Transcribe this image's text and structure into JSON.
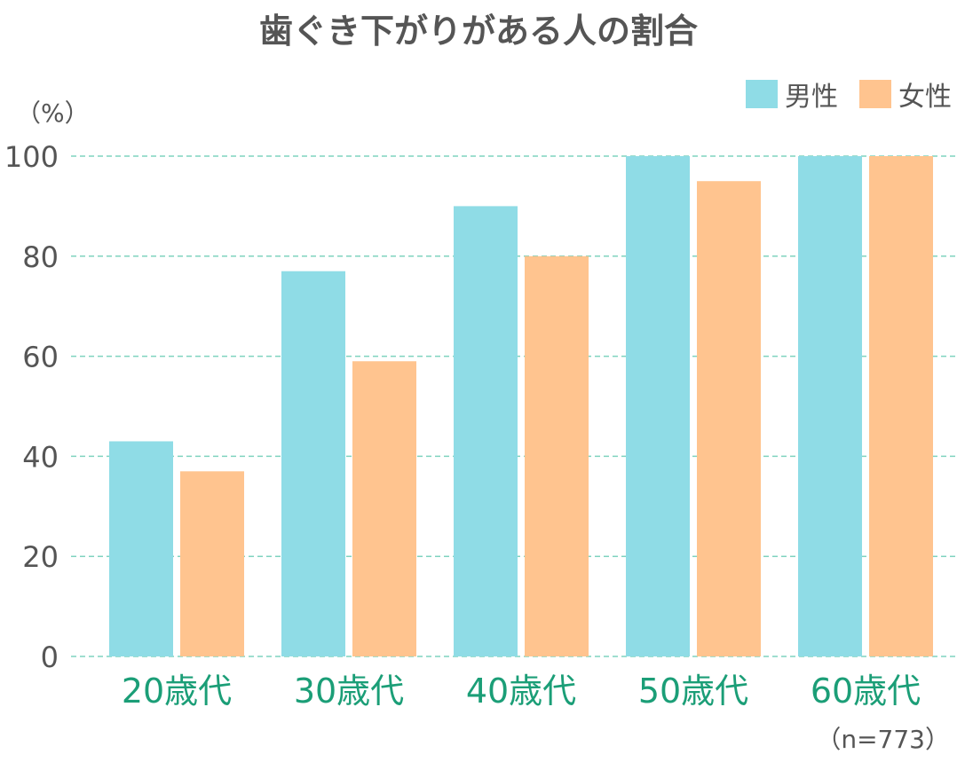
{
  "chart_data": {
    "type": "bar",
    "title": "歯ぐき下がりがある人の割合",
    "unit_label": "（%）",
    "note": "（n=773）",
    "categories": [
      "20歳代",
      "30歳代",
      "40歳代",
      "50歳代",
      "60歳代"
    ],
    "series": [
      {
        "name": "男性",
        "color": "#8fdce6",
        "values": [
          43,
          77,
          90,
          100,
          100
        ]
      },
      {
        "name": "女性",
        "color": "#ffc48f",
        "values": [
          37,
          59,
          80,
          95,
          100
        ]
      }
    ],
    "yticks": [
      0,
      20,
      40,
      60,
      80,
      100
    ],
    "ylim": [
      0,
      100
    ],
    "grid": true,
    "gridline_color": "#7fd3bf",
    "category_label_color": "#1b9e77",
    "legend_position": "top-right"
  }
}
